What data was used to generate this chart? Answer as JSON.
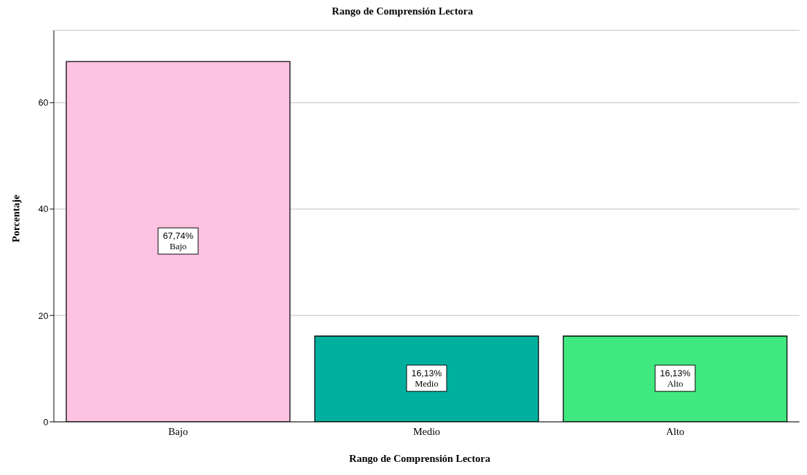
{
  "chart_data": {
    "type": "bar",
    "title": "Rango de Comprensión Lectora",
    "xlabel": "Rango de Comprensión Lectora",
    "ylabel": "Porcentaje",
    "categories": [
      "Bajo",
      "Medio",
      "Alto"
    ],
    "values": [
      67.74,
      16.13,
      16.13
    ],
    "colors": [
      "#fdc1e1",
      "#00b09f",
      "#40e97f"
    ],
    "value_labels": [
      "67,74%",
      "16,13%",
      "16,13%"
    ],
    "ylim": [
      0,
      73.6
    ],
    "yticks": [
      0,
      20,
      40,
      60
    ],
    "grid": "y"
  }
}
